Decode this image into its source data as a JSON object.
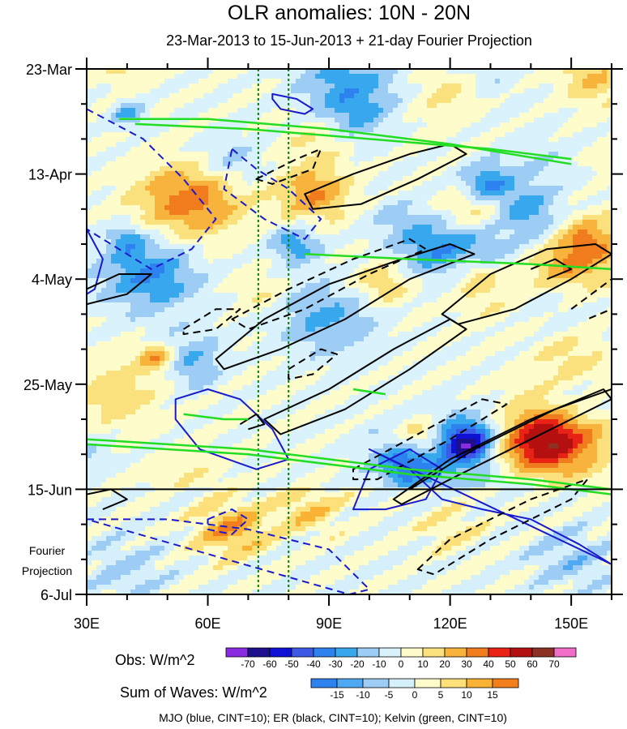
{
  "chart_data": {
    "type": "heatmap",
    "title": "OLR anomalies: 10N - 20N",
    "subtitle": "23-Mar-2013 to 15-Jun-2013 + 21-day Fourier Projection",
    "x_ticks": [
      {
        "value": 30,
        "label": "30E"
      },
      {
        "value": 60,
        "label": "60E"
      },
      {
        "value": 90,
        "label": "90E"
      },
      {
        "value": 120,
        "label": "120E"
      },
      {
        "value": 150,
        "label": "150E"
      }
    ],
    "xlim": [
      30,
      160
    ],
    "y_ticks": [
      {
        "day": 0,
        "label": "23-Mar"
      },
      {
        "day": 21,
        "label": "13-Apr"
      },
      {
        "day": 42,
        "label": "4-May"
      },
      {
        "day": 63,
        "label": "25-May"
      },
      {
        "day": 84,
        "label": "15-Jun"
      },
      {
        "day": 105,
        "label": "6-Jul"
      }
    ],
    "ylim": [
      0,
      105
    ],
    "projection_start_day": 84,
    "projection_label": [
      "Fourier",
      "Projection"
    ],
    "reference_longitudes": [
      72.5,
      80
    ],
    "obs_colorbar": {
      "label": "Obs: W/m^2",
      "levels": [
        -70,
        -60,
        -50,
        -40,
        -30,
        -20,
        -10,
        0,
        10,
        20,
        30,
        40,
        50,
        60,
        70
      ],
      "colors": [
        "#8a2be2",
        "#1e0f8c",
        "#0e10d4",
        "#3c5ae6",
        "#2e82f0",
        "#38a8ee",
        "#9dcdf5",
        "#d9f2fb",
        "#fffccc",
        "#fbe17d",
        "#f7b33c",
        "#f07c1e",
        "#e82214",
        "#b41010",
        "#8c3224",
        "#f06ec8"
      ]
    },
    "waves_colorbar": {
      "label": "Sum of Waves: W/m^2",
      "levels": [
        -15,
        -10,
        -5,
        0,
        5,
        10,
        15
      ],
      "colors": [
        "#2e82f0",
        "#4fa8f2",
        "#9dcdf5",
        "#d6f0fb",
        "#fffccc",
        "#fde07a",
        "#f9b233",
        "#f27e1c"
      ]
    },
    "contours": {
      "mjo": [
        {
          "sign": "neg",
          "pts": [
            [
              30,
              8
            ],
            [
              44,
              14
            ],
            [
              54,
              22
            ],
            [
              58,
              26
            ],
            [
              62,
              30
            ],
            [
              56,
              36
            ],
            [
              46,
              40
            ],
            [
              30,
              32
            ]
          ]
        },
        {
          "sign": "neg",
          "pts": [
            [
              66,
              16
            ],
            [
              72,
              20
            ],
            [
              80,
              24
            ],
            [
              88,
              30
            ],
            [
              84,
              34
            ],
            [
              74,
              30
            ],
            [
              64,
              24
            ]
          ]
        },
        {
          "sign": "pos",
          "pts": [
            [
              76,
              5
            ],
            [
              82,
              6
            ],
            [
              86,
              8
            ],
            [
              84,
              9
            ],
            [
              78,
              8
            ],
            [
              76,
              6
            ]
          ]
        },
        {
          "sign": "pos",
          "pts": [
            [
              30,
              32
            ],
            [
              34,
              38
            ],
            [
              32,
              44
            ],
            [
              30,
              45
            ]
          ]
        },
        {
          "sign": "pos",
          "pts": [
            [
              52,
              66
            ],
            [
              60,
              64
            ],
            [
              68,
              66
            ],
            [
              76,
              72
            ],
            [
              80,
              78
            ],
            [
              72,
              80
            ],
            [
              58,
              76
            ],
            [
              52,
              70
            ]
          ]
        },
        {
          "sign": "pos",
          "pts": [
            [
              100,
              76
            ],
            [
              110,
              80
            ],
            [
              118,
              86
            ],
            [
              128,
              88
            ],
            [
              140,
              90
            ],
            [
              152,
              95
            ],
            [
              160,
              99
            ]
          ]
        },
        {
          "sign": "pos",
          "pts": [
            [
              96,
              88
            ],
            [
              100,
              80
            ],
            [
              110,
              76
            ],
            [
              118,
              80
            ],
            [
              114,
              86
            ],
            [
              104,
              88
            ]
          ]
        },
        {
          "sign": "neg",
          "pts": [
            [
              30,
              90
            ],
            [
              50,
              90
            ],
            [
              70,
              92
            ],
            [
              90,
              96
            ],
            [
              100,
              104
            ],
            [
              95,
              105
            ]
          ]
        },
        {
          "sign": "neg",
          "pts": [
            [
              60,
              90
            ],
            [
              66,
              88
            ],
            [
              70,
              90
            ],
            [
              66,
              93
            ],
            [
              60,
              92
            ]
          ]
        }
      ],
      "er": [
        {
          "sign": "pos",
          "pts": [
            [
              84,
              25
            ],
            [
              96,
              21
            ],
            [
              110,
              17
            ],
            [
              120,
              15
            ],
            [
              124,
              17
            ],
            [
              112,
              22
            ],
            [
              98,
              27
            ],
            [
              86,
              28
            ]
          ]
        },
        {
          "sign": "neg",
          "pts": [
            [
              72,
              22
            ],
            [
              82,
              18
            ],
            [
              88,
              16
            ],
            [
              86,
              20
            ],
            [
              76,
              23
            ]
          ]
        },
        {
          "sign": "pos",
          "pts": [
            [
              30,
              44
            ],
            [
              38,
              41
            ],
            [
              46,
              41
            ],
            [
              40,
              45
            ],
            [
              30,
              47
            ]
          ]
        },
        {
          "sign": "neg",
          "pts": [
            [
              66,
              50
            ],
            [
              80,
              44
            ],
            [
              96,
              38
            ],
            [
              110,
              34
            ],
            [
              114,
              36
            ],
            [
              100,
              41
            ],
            [
              84,
              48
            ],
            [
              70,
              52
            ]
          ]
        },
        {
          "sign": "pos",
          "pts": [
            [
              62,
              58
            ],
            [
              74,
              50
            ],
            [
              90,
              43
            ],
            [
              108,
              38
            ],
            [
              120,
              35
            ],
            [
              126,
              37
            ],
            [
              110,
              42
            ],
            [
              94,
              50
            ],
            [
              78,
              56
            ],
            [
              64,
              60
            ]
          ]
        },
        {
          "sign": "pos",
          "pts": [
            [
              118,
              49
            ],
            [
              130,
              41
            ],
            [
              144,
              36
            ],
            [
              156,
              35
            ],
            [
              160,
              37
            ],
            [
              150,
              42
            ],
            [
              136,
              48
            ],
            [
              122,
              51
            ]
          ]
        },
        {
          "sign": "pos",
          "pts": [
            [
              140,
              40
            ],
            [
              146,
              38
            ],
            [
              150,
              40
            ],
            [
              144,
              42
            ]
          ]
        },
        {
          "sign": "neg",
          "pts": [
            [
              150,
              48
            ],
            [
              160,
              42
            ],
            [
              160,
              48
            ],
            [
              154,
              50
            ]
          ]
        },
        {
          "sign": "neg",
          "pts": [
            [
              54,
              52
            ],
            [
              62,
              48
            ],
            [
              68,
              48
            ],
            [
              62,
              52
            ],
            [
              54,
              53
            ]
          ]
        },
        {
          "sign": "neg",
          "pts": [
            [
              80,
              60
            ],
            [
              88,
              56
            ],
            [
              92,
              57
            ],
            [
              86,
              61
            ],
            [
              80,
              62
            ]
          ]
        },
        {
          "sign": "pos",
          "pts": [
            [
              74,
              70
            ],
            [
              90,
              64
            ],
            [
              106,
              56
            ],
            [
              120,
              50
            ],
            [
              124,
              52
            ],
            [
              110,
              60
            ],
            [
              94,
              68
            ],
            [
              78,
              73
            ]
          ]
        },
        {
          "sign": "pos",
          "pts": [
            [
              68,
              71
            ],
            [
              72,
              69
            ],
            [
              74,
              71
            ],
            [
              70,
              72
            ]
          ]
        },
        {
          "sign": "neg",
          "pts": [
            [
              96,
              80
            ],
            [
              112,
              73
            ],
            [
              128,
              66
            ],
            [
              134,
              67
            ],
            [
              120,
              74
            ],
            [
              102,
              82
            ],
            [
              96,
              82
            ]
          ]
        },
        {
          "sign": "pos",
          "pts": [
            [
              106,
              86
            ],
            [
              120,
              78
            ],
            [
              140,
              70
            ],
            [
              158,
              64
            ],
            [
              160,
              66
            ],
            [
              140,
              74
            ],
            [
              120,
              82
            ],
            [
              108,
              87
            ]
          ]
        },
        {
          "sign": "pos",
          "pts": [
            [
              110,
              84
            ],
            [
              126,
              76
            ],
            [
              146,
              68
            ],
            [
              160,
              64
            ]
          ]
        },
        {
          "sign": "neg",
          "pts": [
            [
              112,
              100
            ],
            [
              120,
              94
            ],
            [
              140,
              86
            ],
            [
              154,
              82
            ],
            [
              150,
              86
            ],
            [
              130,
              94
            ],
            [
              116,
              101
            ]
          ]
        },
        {
          "sign": "pos",
          "pts": [
            [
              30,
              85
            ],
            [
              36,
              84
            ],
            [
              40,
              86
            ],
            [
              34,
              88
            ]
          ]
        }
      ],
      "kelvin": [
        {
          "sign": "pos",
          "pts": [
            [
              38,
              10
            ],
            [
              60,
              10
            ],
            [
              90,
              12
            ],
            [
              120,
              15
            ],
            [
              150,
              19
            ]
          ]
        },
        {
          "sign": "pos",
          "pts": [
            [
              42,
              11
            ],
            [
              70,
              12
            ],
            [
              100,
              14
            ],
            [
              130,
              16
            ],
            [
              150,
              18
            ]
          ]
        },
        {
          "sign": "pos",
          "pts": [
            [
              84,
              37
            ],
            [
              110,
              38
            ],
            [
              140,
              39
            ],
            [
              160,
              40
            ]
          ]
        },
        {
          "sign": "pos",
          "pts": [
            [
              30,
              74
            ],
            [
              70,
              76
            ],
            [
              110,
              80
            ],
            [
              140,
              82
            ],
            [
              160,
              84
            ]
          ]
        },
        {
          "sign": "pos",
          "pts": [
            [
              30,
              75
            ],
            [
              70,
              77
            ],
            [
              110,
              81
            ],
            [
              140,
              83
            ],
            [
              160,
              85
            ]
          ]
        },
        {
          "sign": "pos",
          "pts": [
            [
              54,
              69
            ],
            [
              64,
              70
            ],
            [
              70,
              70
            ]
          ]
        },
        {
          "sign": "pos",
          "pts": [
            [
              96,
              64
            ],
            [
              104,
              65
            ]
          ]
        }
      ]
    },
    "footer": "MJO (blue, CINT=10); ER (black, CINT=10); Kelvin (green, CINT=10)"
  }
}
